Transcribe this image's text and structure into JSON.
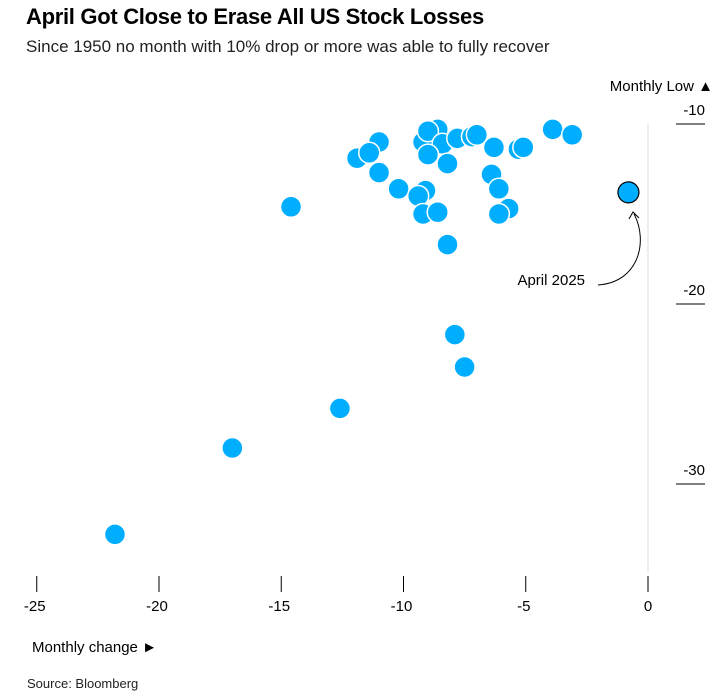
{
  "title": "April Got Close to Erase All US Stock Losses",
  "subtitle": "Since 1950 no month with 10% drop or more was able to fully recover",
  "source": "Source: Bloomberg",
  "chart_data": {
    "type": "scatter",
    "xlabel": "Monthly change ►",
    "ylabel": "Monthly Low ▲",
    "xlim": [
      -26,
      1
    ],
    "ylim": [
      -35,
      -10
    ],
    "xticks": [
      -25,
      -20,
      -15,
      -10,
      -5,
      0
    ],
    "yticks": [
      -10,
      -20,
      -30
    ],
    "grid": false,
    "color": "#00aeff",
    "highlight": {
      "label": "April 2025",
      "x": -0.8,
      "y": -13.8
    },
    "points": [
      [
        -11.9,
        -11.9
      ],
      [
        -11.0,
        -11.0
      ],
      [
        -11.4,
        -11.6
      ],
      [
        -11.0,
        -12.7
      ],
      [
        -10.2,
        -13.6
      ],
      [
        -9.1,
        -13.7
      ],
      [
        -9.4,
        -14.0
      ],
      [
        -9.2,
        -15.0
      ],
      [
        -8.6,
        -14.9
      ],
      [
        -8.2,
        -16.7
      ],
      [
        -9.2,
        -11.0
      ],
      [
        -8.6,
        -10.3
      ],
      [
        -9.0,
        -10.4
      ],
      [
        -8.4,
        -11.1
      ],
      [
        -9.0,
        -11.7
      ],
      [
        -8.2,
        -12.2
      ],
      [
        -7.8,
        -10.8
      ],
      [
        -7.2,
        -10.7
      ],
      [
        -7.0,
        -10.6
      ],
      [
        -6.3,
        -11.3
      ],
      [
        -6.4,
        -12.8
      ],
      [
        -6.1,
        -13.6
      ],
      [
        -5.7,
        -14.7
      ],
      [
        -6.1,
        -15.0
      ],
      [
        -5.3,
        -11.4
      ],
      [
        -5.1,
        -11.3
      ],
      [
        -3.9,
        -10.3
      ],
      [
        -3.1,
        -10.6
      ],
      [
        -14.6,
        -14.6
      ],
      [
        -7.9,
        -21.7
      ],
      [
        -7.5,
        -23.5
      ],
      [
        -12.6,
        -25.8
      ],
      [
        -17.0,
        -28.0
      ],
      [
        -21.8,
        -32.8
      ]
    ]
  }
}
